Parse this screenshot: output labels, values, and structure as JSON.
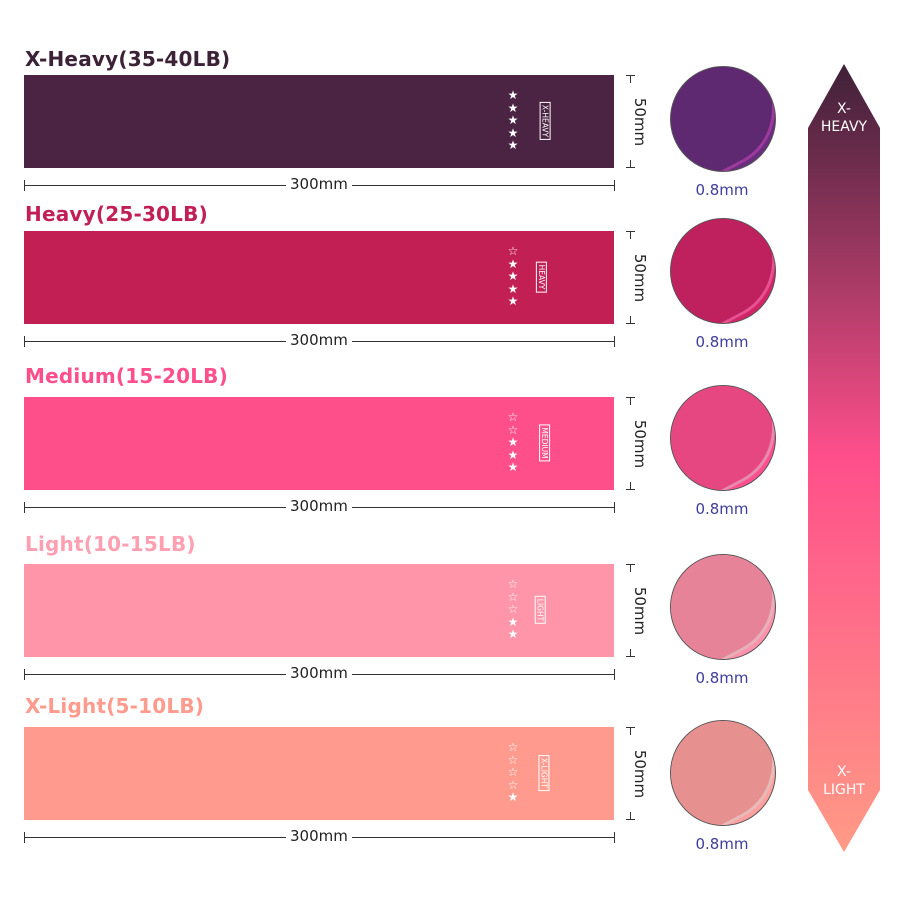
{
  "bands": [
    {
      "title": "X-Heavy(35-40LB)",
      "tag": "X-HEAVY",
      "stars_filled": 5,
      "width_label": "50mm",
      "length_label": "300mm",
      "thickness_label": "0.8mm",
      "color": "#4a2442",
      "title_color": "#3b2236",
      "circle_color": "#6a2e7e",
      "circle_edge": "#b040b0"
    },
    {
      "title": "Heavy(25-30LB)",
      "tag": "HEAVY",
      "stars_filled": 4,
      "width_label": "50mm",
      "length_label": "300mm",
      "thickness_label": "0.8mm",
      "color": "#c21f55",
      "title_color": "#c21f55",
      "circle_color": "#d42468",
      "circle_edge": "#ff5aa0"
    },
    {
      "title": "Medium(15-20LB)",
      "tag": "MEDIUM",
      "stars_filled": 3,
      "width_label": "50mm",
      "length_label": "300mm",
      "thickness_label": "0.8mm",
      "color": "#ff4f8b",
      "title_color": "#ff4f8b",
      "circle_color": "#ff4f8e",
      "circle_edge": "#ff9ac0"
    },
    {
      "title": "Light(10-15LB)",
      "tag": "LIGHT",
      "stars_filled": 2,
      "width_label": "50mm",
      "length_label": "300mm",
      "thickness_label": "0.8mm",
      "color": "#ff95a8",
      "title_color": "#ffa0b2",
      "circle_color": "#ff92aa",
      "circle_edge": "#ffc4d0"
    },
    {
      "title": "X-Light(5-10LB)",
      "tag": "X-LIGHT",
      "stars_filled": 1,
      "width_label": "50mm",
      "length_label": "300mm",
      "thickness_label": "0.8mm",
      "color": "#ff9b8e",
      "title_color": "#ff9b8e",
      "circle_color": "#ffa0a0",
      "circle_edge": "#ffd0cc"
    }
  ],
  "stars_total": 5,
  "scale": {
    "top_label": "X-\nHEAVY",
    "bottom_label": "X-\nLIGHT",
    "top_color": "#3e2138",
    "mid_color": "#ff4f8b",
    "bottom_color": "#ff9a86"
  }
}
